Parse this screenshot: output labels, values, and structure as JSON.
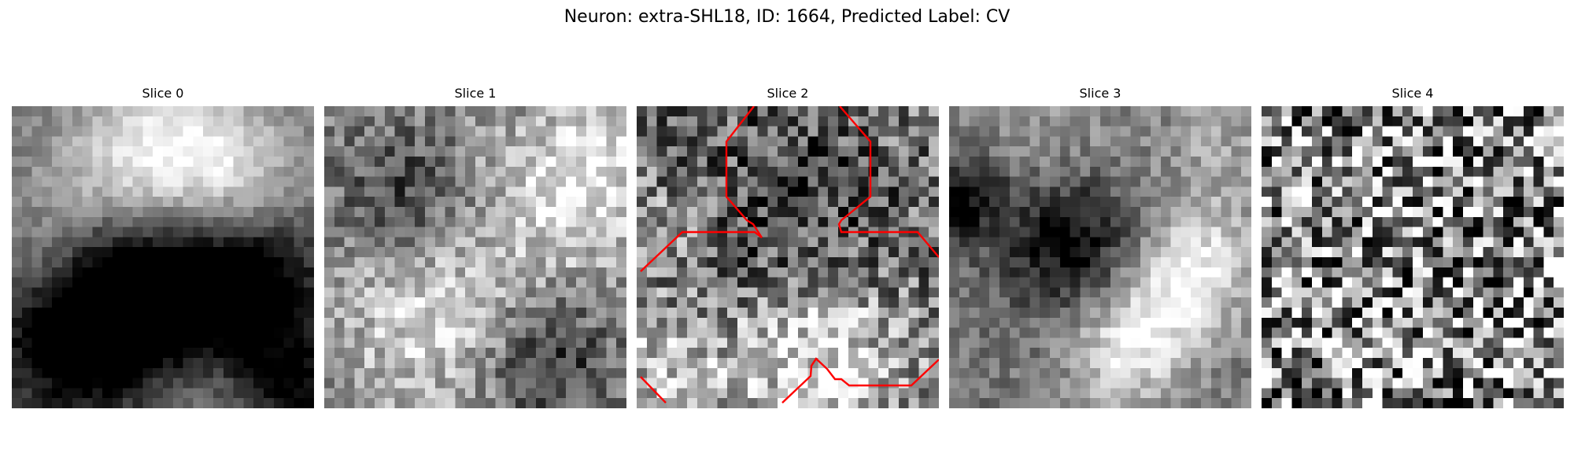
{
  "figure": {
    "title": "Neuron: extra-SHL18, ID: 1664, Predicted Label: CV"
  },
  "panels": [
    {
      "title": "Slice 0",
      "texture": "smooth-grayscale",
      "seed": 11,
      "tiles": 30,
      "noise": 0.1,
      "blobs": [
        [
          0.5,
          0.18,
          0.2,
          0.55
        ],
        [
          0.75,
          0.25,
          0.18,
          0.3
        ],
        [
          0.25,
          0.35,
          0.18,
          0.3
        ],
        [
          0.1,
          0.55,
          0.12,
          0.2
        ],
        [
          0.45,
          0.58,
          0.25,
          -0.7
        ],
        [
          0.25,
          0.75,
          0.2,
          -0.55
        ],
        [
          0.8,
          0.62,
          0.18,
          -0.5
        ],
        [
          0.55,
          0.92,
          0.18,
          0.25
        ],
        [
          0.95,
          0.95,
          0.12,
          -0.4
        ]
      ],
      "base": 0.45,
      "contour": false
    },
    {
      "title": "Slice 1",
      "texture": "smooth-grayscale",
      "seed": 23,
      "tiles": 30,
      "noise": 0.22,
      "blobs": [
        [
          0.25,
          0.28,
          0.15,
          -0.3
        ],
        [
          0.8,
          0.3,
          0.18,
          0.35
        ],
        [
          0.35,
          0.7,
          0.2,
          0.3
        ],
        [
          0.75,
          0.85,
          0.15,
          -0.35
        ],
        [
          0.95,
          0.1,
          0.12,
          0.2
        ]
      ],
      "base": 0.55,
      "contour": false
    },
    {
      "title": "Slice 2",
      "texture": "noisy-grayscale",
      "seed": 37,
      "tiles": 30,
      "noise": 0.35,
      "blobs": [
        [
          0.6,
          0.85,
          0.2,
          0.45
        ],
        [
          0.1,
          0.9,
          0.15,
          0.35
        ],
        [
          0.5,
          0.35,
          0.25,
          -0.2
        ],
        [
          0.1,
          0.4,
          0.12,
          0.15
        ]
      ],
      "base": 0.45,
      "contour": true
    },
    {
      "title": "Slice 3",
      "texture": "smooth-grayscale",
      "seed": 51,
      "tiles": 30,
      "noise": 0.15,
      "blobs": [
        [
          0.4,
          0.45,
          0.15,
          -0.5
        ],
        [
          0.05,
          0.3,
          0.1,
          -0.45
        ],
        [
          0.7,
          0.68,
          0.15,
          0.45
        ],
        [
          0.85,
          0.5,
          0.12,
          0.35
        ],
        [
          0.55,
          0.85,
          0.12,
          0.3
        ],
        [
          0.3,
          0.1,
          0.2,
          0.15
        ],
        [
          0.9,
          0.15,
          0.15,
          0.2
        ]
      ],
      "base": 0.45,
      "contour": false
    },
    {
      "title": "Slice 4",
      "texture": "pure-noise",
      "seed": 67,
      "tiles": 30,
      "noise": 0.6,
      "blobs": [],
      "base": 0.55,
      "contour": false
    }
  ],
  "contour_color": "#ff0000"
}
